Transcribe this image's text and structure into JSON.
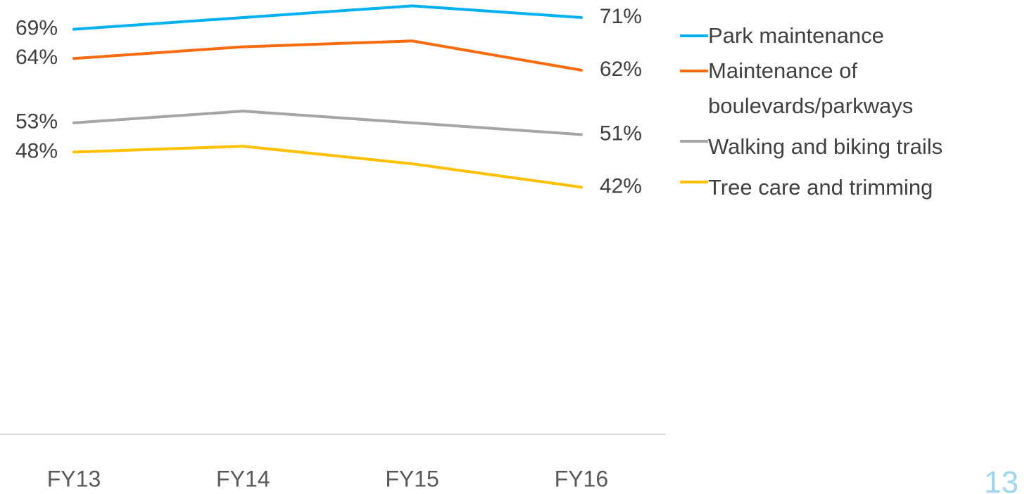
{
  "chart_data": {
    "type": "line",
    "categories": [
      "FY13",
      "FY14",
      "FY15",
      "FY16"
    ],
    "series": [
      {
        "name": "Park maintenance",
        "color": "#00b0f0",
        "values": [
          69,
          71,
          73,
          71
        ],
        "value_labels": [
          "69%",
          null,
          null,
          "71%"
        ]
      },
      {
        "name": "Maintenance of boulevards/parkways",
        "color": "#f96b0f",
        "values": [
          64,
          66,
          67,
          62
        ],
        "value_labels": [
          "64%",
          null,
          null,
          "62%"
        ]
      },
      {
        "name": "Walking and biking trails",
        "color": "#a5a5a5",
        "values": [
          53,
          55,
          53,
          51
        ],
        "value_labels": [
          "53%",
          null,
          null,
          "51%"
        ]
      },
      {
        "name": "Tree care and trimming",
        "color": "#ffc000",
        "values": [
          48,
          49,
          46,
          42
        ],
        "value_labels": [
          "48%",
          null,
          null,
          "42%"
        ]
      }
    ],
    "ylim": [
      0,
      74
    ],
    "grid": false,
    "legend": "right"
  },
  "page_number": "13"
}
